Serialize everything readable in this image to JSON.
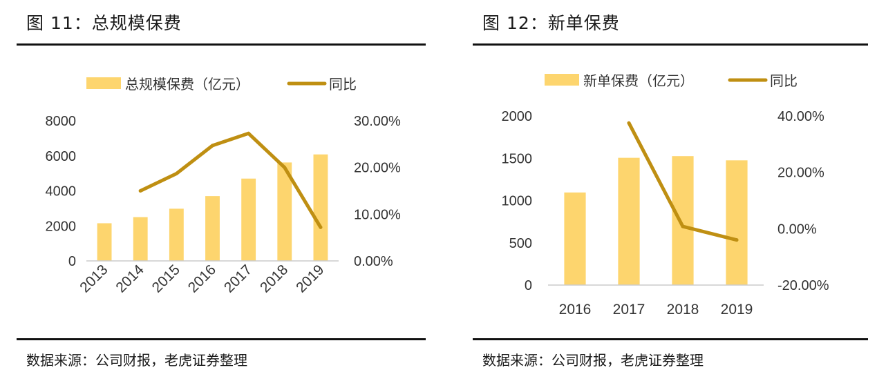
{
  "colors": {
    "bar": "#FDD56E",
    "line": "#BF8F12",
    "axis": "#cccccc",
    "text": "#333333"
  },
  "charts": [
    {
      "title": "图 11：总规模保费",
      "source": "数据来源：公司财报，老虎证券整理",
      "chart_data": {
        "type": "bar",
        "categories": [
          "2013",
          "2014",
          "2015",
          "2016",
          "2017",
          "2018",
          "2019"
        ],
        "series": [
          {
            "name": "总规模保费（亿元）",
            "type": "bar",
            "axis": "left",
            "values": [
              2150,
              2500,
              2980,
              3700,
              4700,
              5620,
              6080
            ]
          },
          {
            "name": "同比",
            "type": "line",
            "axis": "right",
            "values": [
              null,
              15.0,
              18.7,
              24.7,
              27.3,
              20.0,
              7.2
            ]
          }
        ],
        "ylim": [
          0,
          8000
        ],
        "yticks": [
          "0",
          "2000",
          "4000",
          "6000",
          "8000"
        ],
        "y2lim": [
          0,
          30
        ],
        "y2ticks": [
          "0.00%",
          "10.00%",
          "20.00%",
          "30.00%"
        ],
        "legend": "top",
        "grid": false
      }
    },
    {
      "title": "图 12：新单保费",
      "source": "数据来源：公司财报，老虎证券整理",
      "chart_data": {
        "type": "bar",
        "categories": [
          "2016",
          "2017",
          "2018",
          "2019"
        ],
        "series": [
          {
            "name": "新单保费（亿元）",
            "type": "bar",
            "axis": "left",
            "values": [
              1095,
              1505,
              1525,
              1475
            ]
          },
          {
            "name": "同比",
            "type": "line",
            "axis": "right",
            "values": [
              null,
              37.5,
              0.8,
              -4.0
            ]
          }
        ],
        "ylim": [
          0,
          2000
        ],
        "yticks": [
          "0",
          "500",
          "1000",
          "1500",
          "2000"
        ],
        "y2lim": [
          -20,
          40
        ],
        "y2ticks": [
          "-20.00%",
          "0.00%",
          "20.00%",
          "40.00%"
        ],
        "legend": "top",
        "grid": false
      }
    }
  ]
}
